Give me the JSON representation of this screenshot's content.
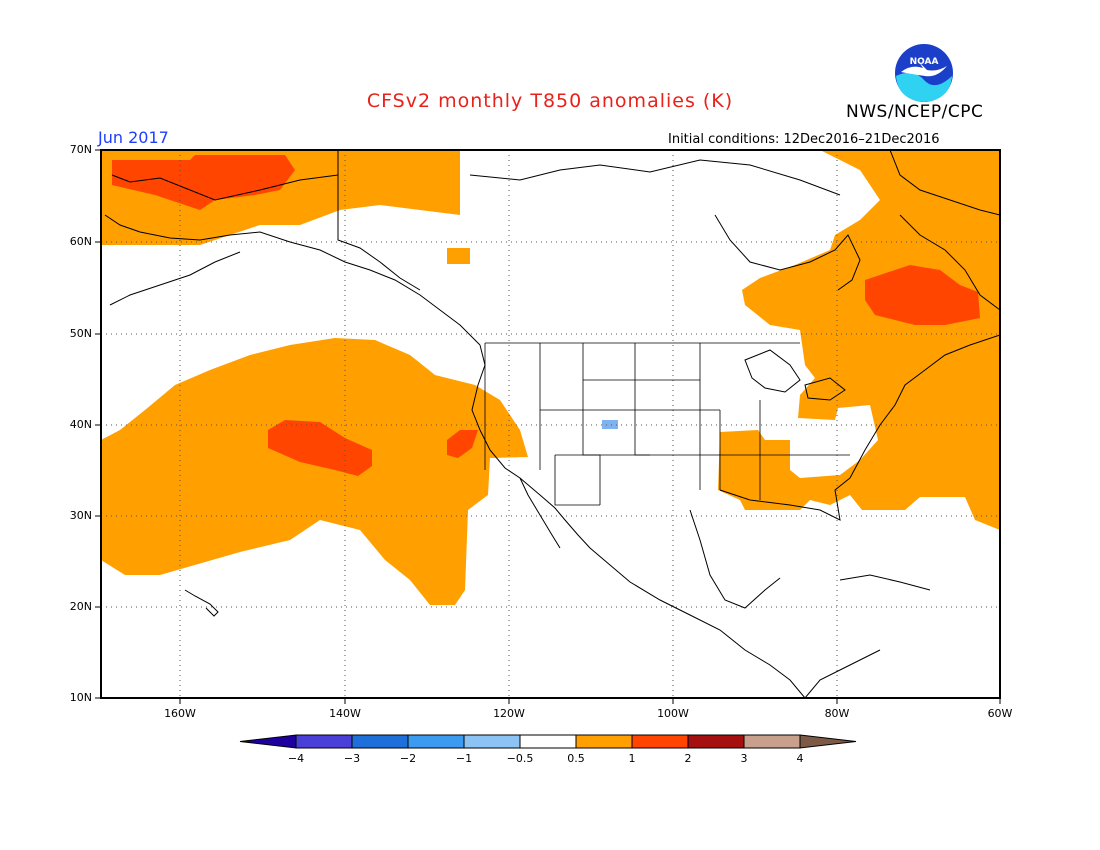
{
  "title": "CFSv2 monthly T850 anomalies (K)",
  "agency": "NWS/NCEP/CPC",
  "logo_text": "NOAA",
  "period": "Jun 2017",
  "initial_conditions": "Initial conditions: 12Dec2016–21Dec2016",
  "lat_labels": [
    "70N",
    "60N",
    "50N",
    "40N",
    "30N",
    "20N",
    "10N"
  ],
  "lon_labels": [
    "160W",
    "140W",
    "120W",
    "100W",
    "80W",
    "60W"
  ],
  "colorbar": {
    "labels": [
      "−4",
      "−3",
      "−2",
      "−1",
      "−0.5",
      "0.5",
      "1",
      "2",
      "3",
      "4"
    ],
    "colors": [
      "#1e00a0",
      "#4a3fd6",
      "#1e6fd9",
      "#3c9af0",
      "#8cc3f5",
      "#ffffff",
      "#ffa000",
      "#ff4500",
      "#a50f0f",
      "#c8a08c",
      "#7d5a46"
    ]
  },
  "map_colors": {
    "anomaly_05_1": "#ffa000",
    "anomaly_1_2": "#ff4500",
    "anomaly_neg": "#7fb3f0"
  }
}
